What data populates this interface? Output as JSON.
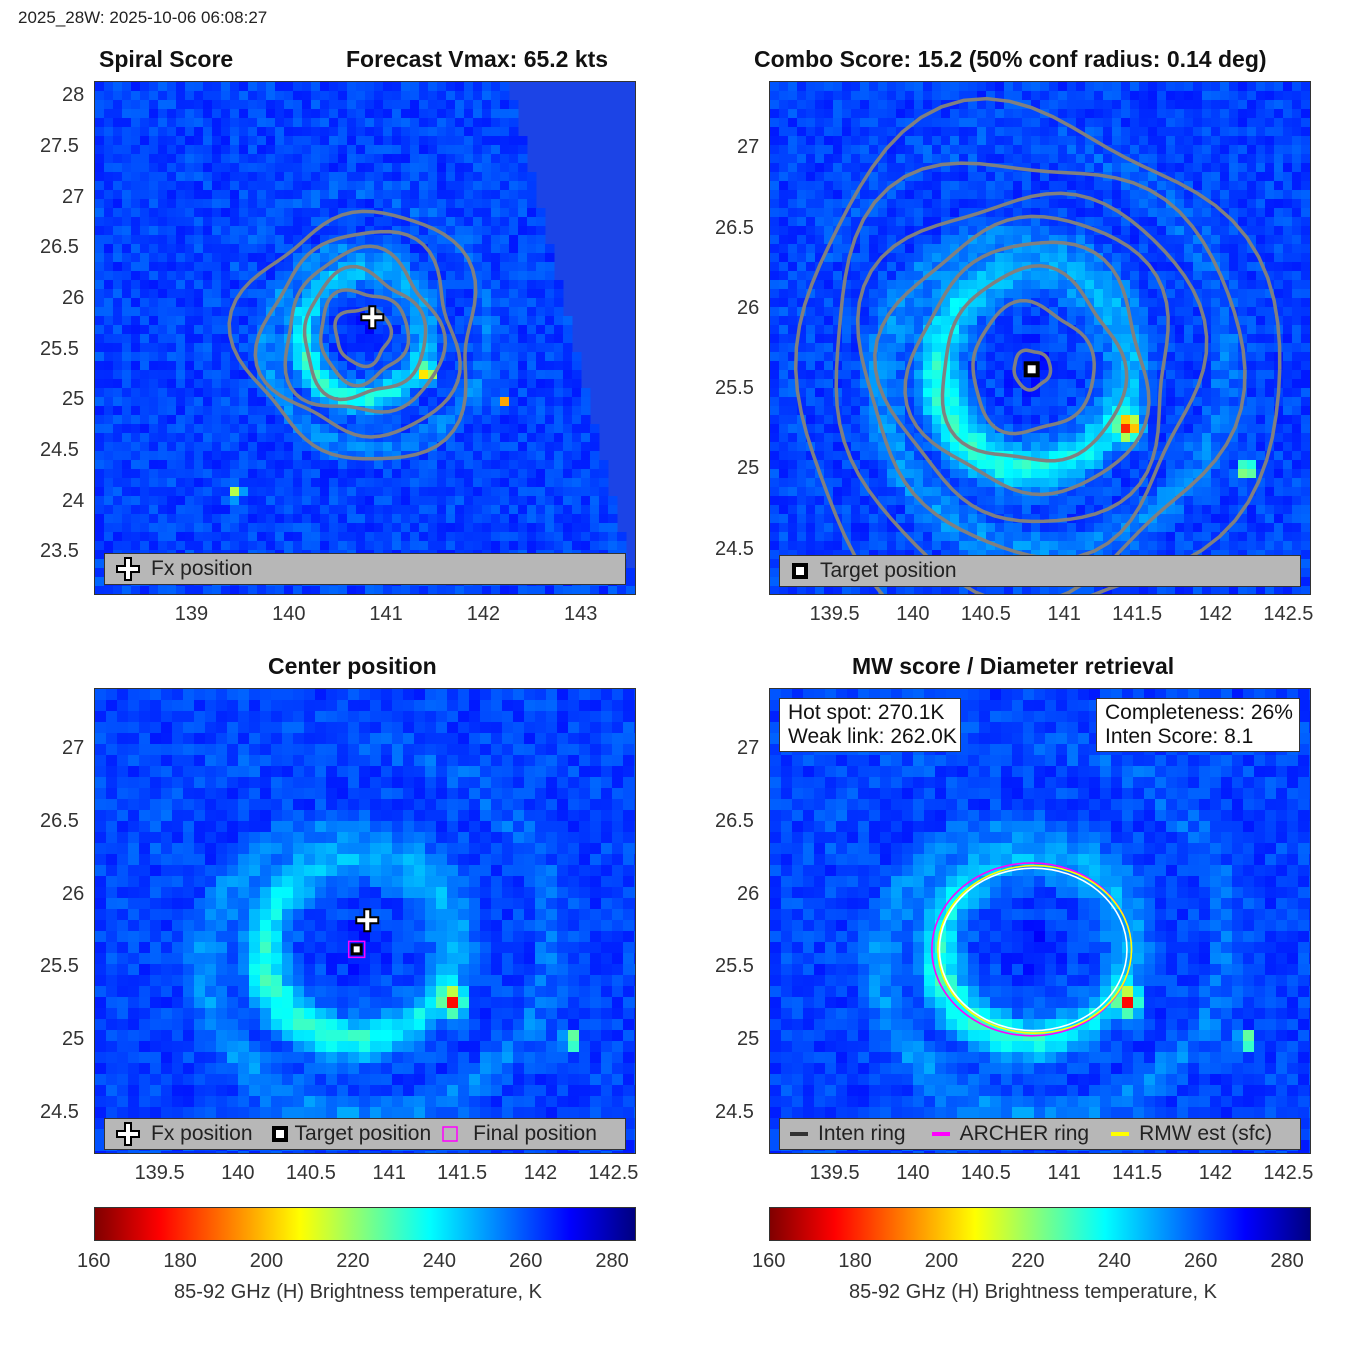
{
  "header": {
    "timestamp": "2025_28W: 2025-10-06 06:08:27"
  },
  "panels": {
    "top_left": {
      "title_left": "Spiral Score",
      "title_right": "Forecast Vmax: 65.2 kts",
      "xticks": [
        "139",
        "140",
        "141",
        "142",
        "143"
      ],
      "yticks": [
        "28",
        "27.5",
        "27",
        "26.5",
        "26",
        "25.5",
        "25",
        "24.5",
        "24",
        "23.5"
      ],
      "legend": [
        "Fx position"
      ]
    },
    "top_right": {
      "title": "Combo Score: 15.2  (50% conf radius: 0.14 deg)",
      "xticks": [
        "139.5",
        "140",
        "140.5",
        "141",
        "141.5",
        "142",
        "142.5"
      ],
      "yticks": [
        "27",
        "26.5",
        "26",
        "25.5",
        "25",
        "24.5"
      ],
      "legend": [
        "Target position"
      ]
    },
    "bottom_left": {
      "title": "Center position",
      "xticks": [
        "139.5",
        "140",
        "140.5",
        "141",
        "141.5",
        "142",
        "142.5"
      ],
      "yticks": [
        "27",
        "26.5",
        "26",
        "25.5",
        "25",
        "24.5"
      ],
      "legend": [
        "Fx position",
        "Target position",
        "Final position"
      ]
    },
    "bottom_right": {
      "title": "MW score / Diameter retrieval",
      "xticks": [
        "139.5",
        "140",
        "140.5",
        "141",
        "141.5",
        "142",
        "142.5"
      ],
      "yticks": [
        "27",
        "26.5",
        "26",
        "25.5",
        "25",
        "24.5"
      ],
      "info_left": [
        "Hot spot: 270.1K",
        "Weak link: 262.0K"
      ],
      "info_right": [
        "Completeness: 26%",
        "Inten Score: 8.1"
      ],
      "legend": [
        "Inten ring",
        "ARCHER ring",
        "RMW est (sfc)"
      ]
    }
  },
  "colorbar": {
    "ticks": [
      "160",
      "180",
      "200",
      "220",
      "240",
      "260",
      "280"
    ],
    "label": "85-92 GHz (H) Brightness temperature, K",
    "range": [
      160,
      285
    ]
  },
  "chart_data": [
    {
      "type": "heatmap",
      "title": "Spiral Score",
      "subtitle": "Forecast Vmax: 65.2 kts",
      "xlim": [
        138.0,
        143.55
      ],
      "ylim": [
        23.1,
        28.15
      ],
      "fx_position": [
        140.85,
        25.83
      ],
      "contour_center": [
        140.75,
        25.65
      ],
      "contour_radii_deg": [
        0.28,
        0.45,
        0.62,
        0.8,
        1.0,
        1.22
      ]
    },
    {
      "type": "heatmap",
      "title": "Combo Score: 15.2  (50% conf radius: 0.14 deg)",
      "xlim": [
        139.05,
        142.62
      ],
      "ylim": [
        24.23,
        27.42
      ],
      "target_position": [
        140.78,
        25.63
      ],
      "contour_radii_deg": [
        0.12,
        0.4,
        0.6,
        0.78,
        0.95,
        1.12,
        1.35,
        1.6
      ]
    },
    {
      "type": "heatmap",
      "title": "Center position",
      "xlim": [
        139.05,
        142.62
      ],
      "ylim": [
        24.23,
        27.42
      ],
      "fx_position": [
        140.85,
        25.83
      ],
      "target_position": [
        140.78,
        25.63
      ],
      "final_position": [
        140.78,
        25.63
      ]
    },
    {
      "type": "heatmap",
      "title": "MW score / Diameter retrieval",
      "xlim": [
        139.05,
        142.62
      ],
      "ylim": [
        24.23,
        27.42
      ],
      "ring_center": [
        140.78,
        25.63
      ],
      "inten_ring_radius_deg": 0.62,
      "archer_ring_radius_deg": 0.66,
      "rmw_ring_radius_deg": 0.64,
      "hot_spot_K": 270.1,
      "weak_link_K": 262.0,
      "completeness_pct": 26,
      "inten_score": 8.1
    }
  ]
}
